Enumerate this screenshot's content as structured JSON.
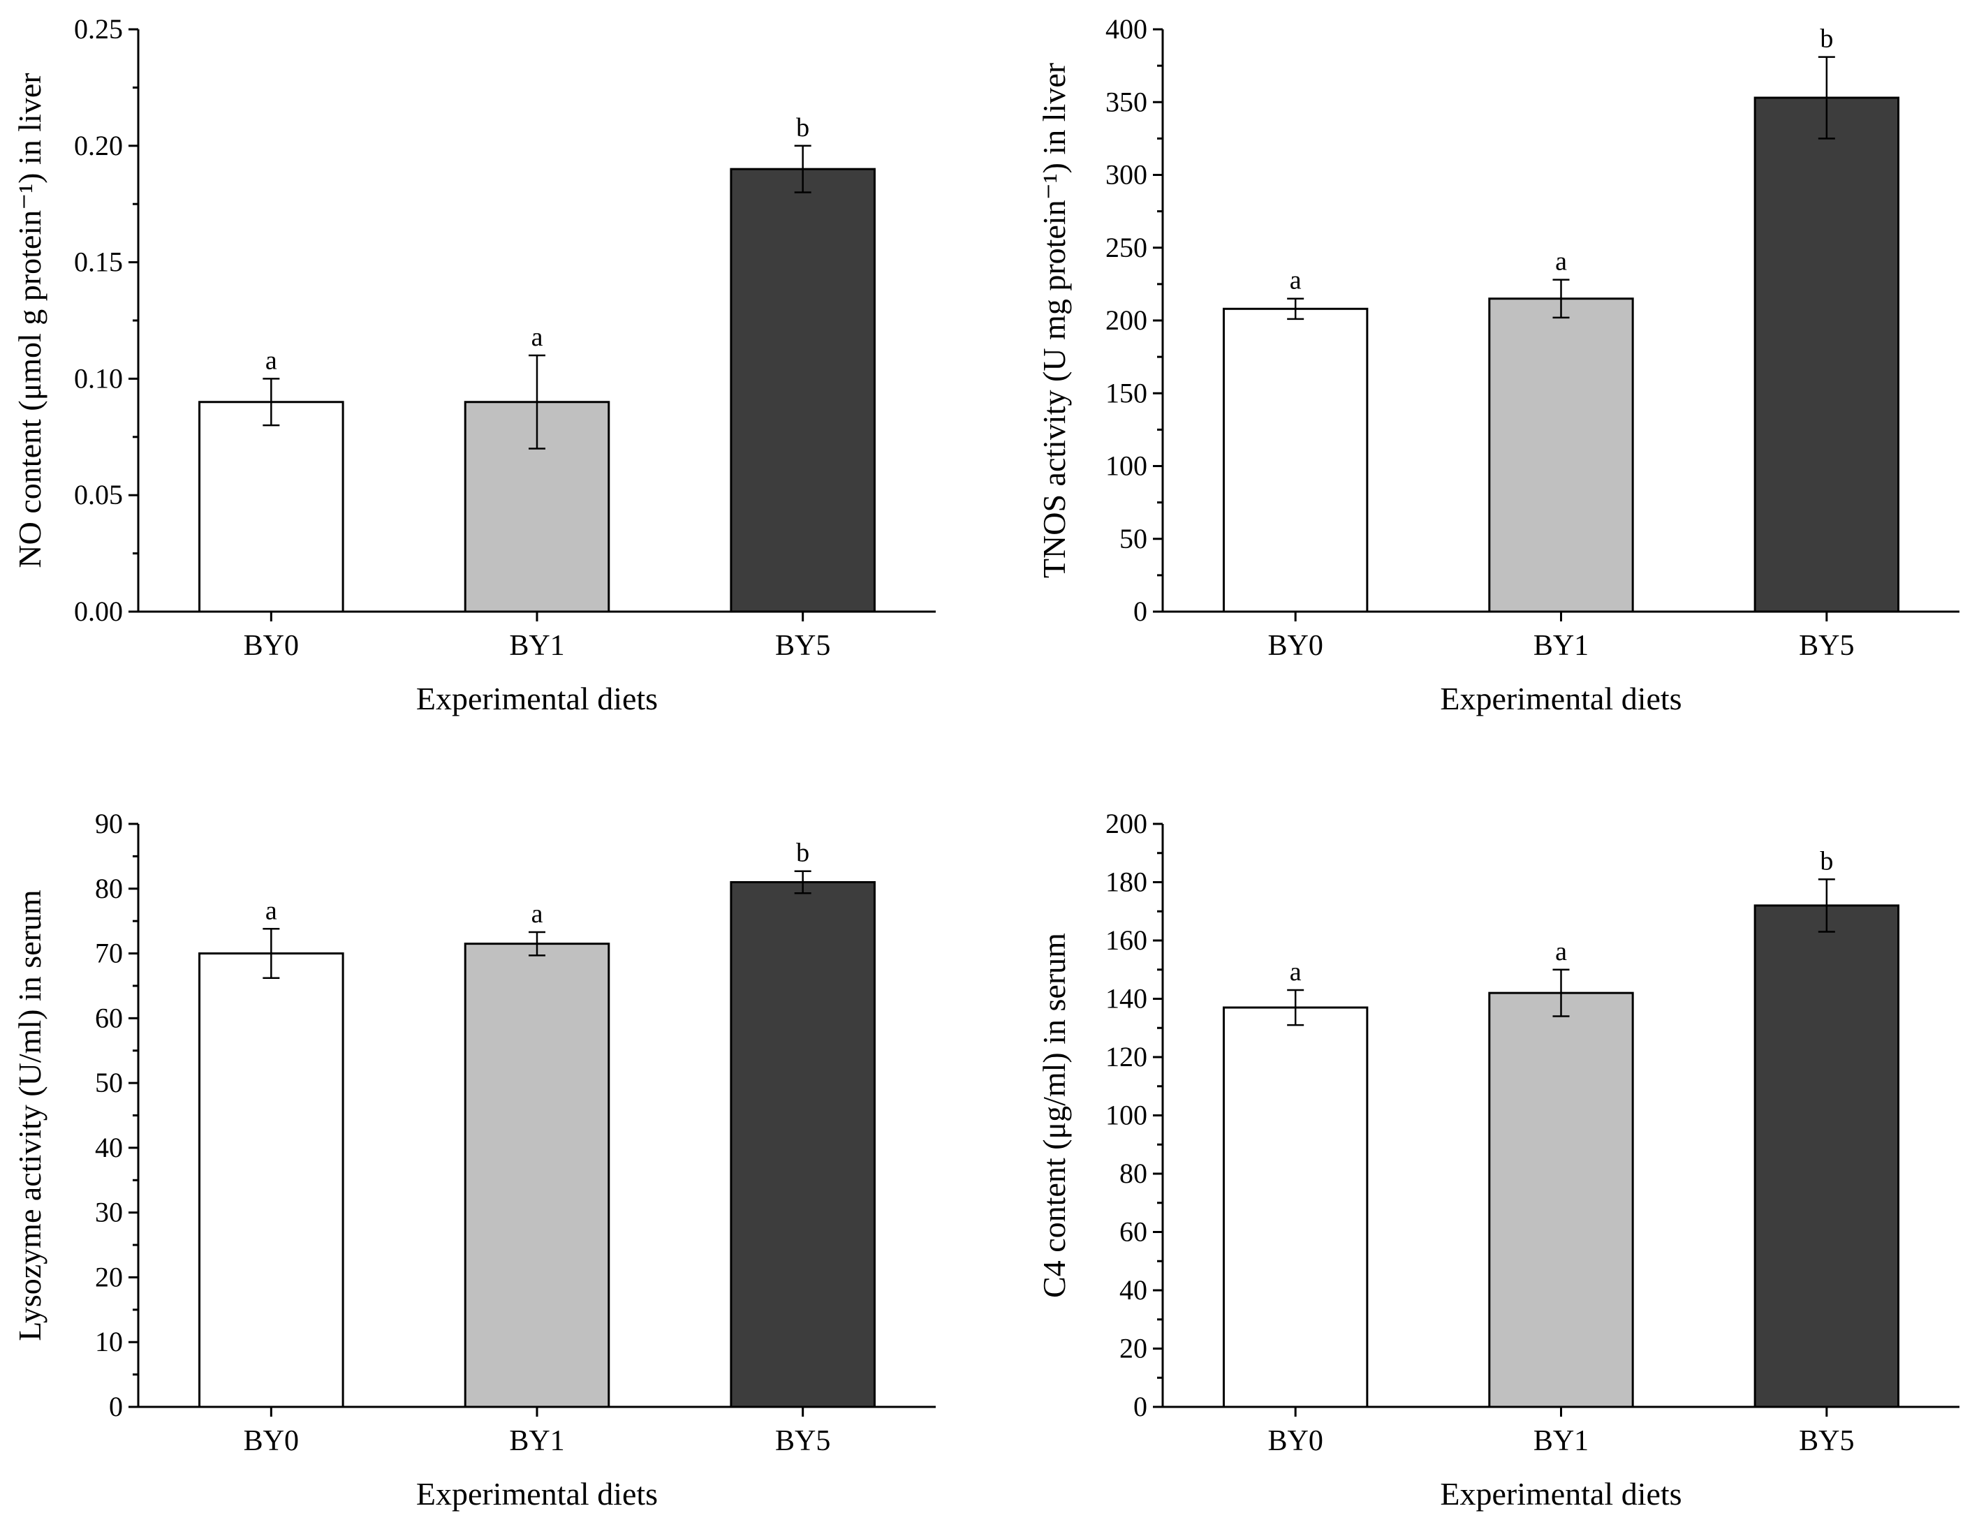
{
  "chart_data": [
    {
      "type": "bar",
      "categories": [
        "BY0",
        "BY1",
        "BY5"
      ],
      "values": [
        0.09,
        0.09,
        0.19
      ],
      "errors": [
        0.01,
        0.02,
        0.01
      ],
      "significance": [
        "a",
        "a",
        "b"
      ],
      "bar_colors": [
        "#ffffff",
        "#c0c0c0",
        "#3d3d3d"
      ],
      "xlabel": "Experimental diets",
      "ylabel": "NO content (μmol g protein⁻¹) in liver",
      "ylim": [
        0,
        0.25
      ],
      "yticks": [
        0,
        0.05,
        0.1,
        0.15,
        0.2,
        0.25
      ],
      "ytick_labels": [
        "0.00",
        "0.05",
        "0.10",
        "0.15",
        "0.20",
        "0.25"
      ]
    },
    {
      "type": "bar",
      "categories": [
        "BY0",
        "BY1",
        "BY5"
      ],
      "values": [
        208,
        215,
        353
      ],
      "errors": [
        7,
        13,
        28
      ],
      "significance": [
        "a",
        "a",
        "b"
      ],
      "bar_colors": [
        "#ffffff",
        "#c0c0c0",
        "#3d3d3d"
      ],
      "xlabel": "Experimental diets",
      "ylabel": "TNOS activity (U mg protein⁻¹) in liver",
      "ylim": [
        0,
        400
      ],
      "yticks": [
        0,
        50,
        100,
        150,
        200,
        250,
        300,
        350,
        400
      ],
      "ytick_labels": [
        "0",
        "50",
        "100",
        "150",
        "200",
        "250",
        "300",
        "350",
        "400"
      ]
    },
    {
      "type": "bar",
      "categories": [
        "BY0",
        "BY1",
        "BY5"
      ],
      "values": [
        70,
        71.5,
        81
      ],
      "errors": [
        3.8,
        1.8,
        1.7
      ],
      "significance": [
        "a",
        "a",
        "b"
      ],
      "bar_colors": [
        "#ffffff",
        "#c0c0c0",
        "#3d3d3d"
      ],
      "xlabel": "Experimental diets",
      "ylabel": "Lysozyme activity (U/ml) in serum",
      "ylim": [
        0,
        90
      ],
      "yticks": [
        0,
        10,
        20,
        30,
        40,
        50,
        60,
        70,
        80,
        90
      ],
      "ytick_labels": [
        "0",
        "10",
        "20",
        "30",
        "40",
        "50",
        "60",
        "70",
        "80",
        "90"
      ]
    },
    {
      "type": "bar",
      "categories": [
        "BY0",
        "BY1",
        "BY5"
      ],
      "values": [
        137,
        142,
        172
      ],
      "errors": [
        6,
        8,
        9
      ],
      "significance": [
        "a",
        "a",
        "b"
      ],
      "bar_colors": [
        "#ffffff",
        "#c0c0c0",
        "#3d3d3d"
      ],
      "xlabel": "Experimental diets",
      "ylabel": "C4 content (μg/ml) in serum",
      "ylim": [
        0,
        200
      ],
      "yticks": [
        0,
        20,
        40,
        60,
        80,
        100,
        120,
        140,
        160,
        180,
        200
      ],
      "ytick_labels": [
        "0",
        "20",
        "40",
        "60",
        "80",
        "100",
        "120",
        "140",
        "160",
        "180",
        "200"
      ]
    }
  ]
}
